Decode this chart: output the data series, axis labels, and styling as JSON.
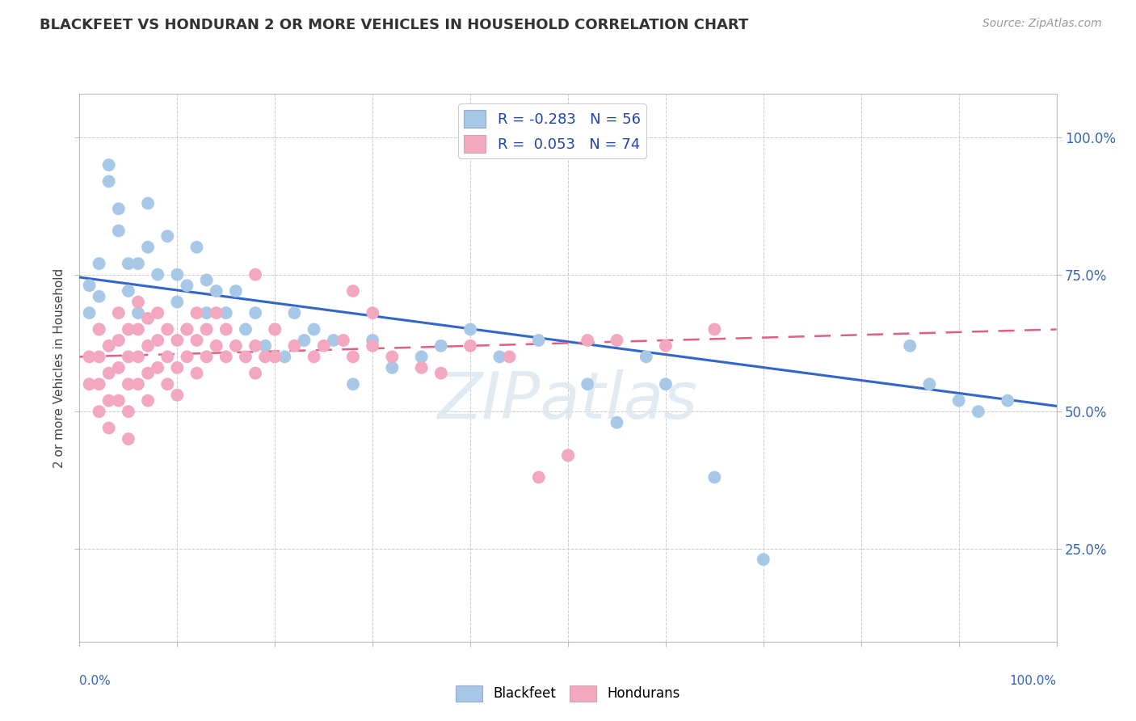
{
  "title": "BLACKFEET VS HONDURAN 2 OR MORE VEHICLES IN HOUSEHOLD CORRELATION CHART",
  "source": "Source: ZipAtlas.com",
  "ylabel": "2 or more Vehicles in Household",
  "y_ticks_labels": [
    "25.0%",
    "50.0%",
    "75.0%",
    "100.0%"
  ],
  "y_ticks_values": [
    0.25,
    0.5,
    0.75,
    1.0
  ],
  "xlim": [
    0.0,
    1.0
  ],
  "ylim": [
    0.08,
    1.08
  ],
  "blackfeet_R": -0.283,
  "blackfeet_N": 56,
  "honduran_R": 0.053,
  "honduran_N": 74,
  "blackfeet_color": "#a8c8e8",
  "honduran_color": "#f4a8c0",
  "blackfeet_line_color": "#3366cc",
  "honduran_line_color": "#e06080",
  "blackfeet_x": [
    0.01,
    0.01,
    0.02,
    0.02,
    0.02,
    0.03,
    0.03,
    0.04,
    0.04,
    0.05,
    0.05,
    0.06,
    0.06,
    0.07,
    0.07,
    0.08,
    0.09,
    0.1,
    0.1,
    0.11,
    0.11,
    0.12,
    0.13,
    0.13,
    0.14,
    0.15,
    0.16,
    0.17,
    0.18,
    0.19,
    0.2,
    0.21,
    0.22,
    0.23,
    0.24,
    0.26,
    0.28,
    0.3,
    0.32,
    0.35,
    0.37,
    0.4,
    0.43,
    0.47,
    0.5,
    0.52,
    0.55,
    0.58,
    0.6,
    0.65,
    0.7,
    0.85,
    0.87,
    0.9,
    0.92,
    0.95
  ],
  "blackfeet_y": [
    0.73,
    0.68,
    0.77,
    0.71,
    0.65,
    0.95,
    0.92,
    0.83,
    0.87,
    0.77,
    0.72,
    0.77,
    0.68,
    0.88,
    0.8,
    0.75,
    0.82,
    0.75,
    0.7,
    0.73,
    0.65,
    0.8,
    0.74,
    0.68,
    0.72,
    0.68,
    0.72,
    0.65,
    0.68,
    0.62,
    0.65,
    0.6,
    0.68,
    0.63,
    0.65,
    0.63,
    0.55,
    0.63,
    0.58,
    0.6,
    0.62,
    0.65,
    0.6,
    0.63,
    0.42,
    0.55,
    0.48,
    0.6,
    0.55,
    0.38,
    0.23,
    0.62,
    0.55,
    0.52,
    0.5,
    0.52
  ],
  "honduran_x": [
    0.01,
    0.01,
    0.02,
    0.02,
    0.02,
    0.02,
    0.03,
    0.03,
    0.03,
    0.03,
    0.04,
    0.04,
    0.04,
    0.04,
    0.05,
    0.05,
    0.05,
    0.05,
    0.05,
    0.06,
    0.06,
    0.06,
    0.06,
    0.07,
    0.07,
    0.07,
    0.07,
    0.08,
    0.08,
    0.08,
    0.09,
    0.09,
    0.09,
    0.1,
    0.1,
    0.1,
    0.11,
    0.11,
    0.12,
    0.12,
    0.12,
    0.13,
    0.13,
    0.14,
    0.14,
    0.15,
    0.15,
    0.16,
    0.17,
    0.18,
    0.18,
    0.19,
    0.2,
    0.2,
    0.22,
    0.24,
    0.25,
    0.27,
    0.28,
    0.3,
    0.32,
    0.35,
    0.37,
    0.4,
    0.44,
    0.47,
    0.5,
    0.52,
    0.55,
    0.18,
    0.28,
    0.3,
    0.6,
    0.65
  ],
  "honduran_y": [
    0.6,
    0.55,
    0.65,
    0.6,
    0.55,
    0.5,
    0.62,
    0.57,
    0.52,
    0.47,
    0.68,
    0.63,
    0.58,
    0.52,
    0.65,
    0.6,
    0.55,
    0.5,
    0.45,
    0.7,
    0.65,
    0.6,
    0.55,
    0.67,
    0.62,
    0.57,
    0.52,
    0.68,
    0.63,
    0.58,
    0.65,
    0.6,
    0.55,
    0.63,
    0.58,
    0.53,
    0.65,
    0.6,
    0.68,
    0.63,
    0.57,
    0.65,
    0.6,
    0.68,
    0.62,
    0.65,
    0.6,
    0.62,
    0.6,
    0.62,
    0.57,
    0.6,
    0.65,
    0.6,
    0.62,
    0.6,
    0.62,
    0.63,
    0.6,
    0.62,
    0.6,
    0.58,
    0.57,
    0.62,
    0.6,
    0.38,
    0.42,
    0.63,
    0.63,
    0.75,
    0.72,
    0.68,
    0.62,
    0.65
  ],
  "bf_line_x0": 0.0,
  "bf_line_y0": 0.745,
  "bf_line_x1": 1.0,
  "bf_line_y1": 0.51,
  "hon_line_x0": 0.0,
  "hon_line_y0": 0.6,
  "hon_line_x1": 1.0,
  "hon_line_y1": 0.65
}
